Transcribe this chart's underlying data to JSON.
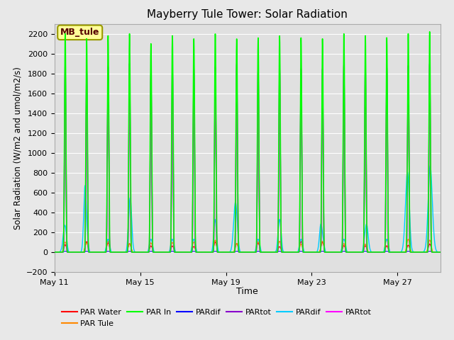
{
  "title": "Mayberry Tule Tower: Solar Radiation",
  "ylabel": "Solar Radiation (W/m2 and umol/m2/s)",
  "xlabel": "Time",
  "ylim": [
    -200,
    2300
  ],
  "yticks": [
    -200,
    0,
    200,
    400,
    600,
    800,
    1000,
    1200,
    1400,
    1600,
    1800,
    2000,
    2200
  ],
  "fig_bg": "#e8e8e8",
  "plot_bg": "#e0e0e0",
  "grid_color": "#ffffff",
  "annotation_text": "MB_tule",
  "annotation_bg": "#ffff99",
  "annotation_border": "#999900",
  "n_days": 18,
  "series_colors": {
    "par_water": "#ff0000",
    "par_tule": "#ff8800",
    "par_in": "#00ff00",
    "pardif_blue": "#0000ff",
    "partot_purple": "#8800cc",
    "pardif_cyan": "#00ccff",
    "partot_magenta": "#ff00ff"
  },
  "legend_entries": [
    {
      "label": "PAR Water",
      "color": "#ff0000"
    },
    {
      "label": "PAR Tule",
      "color": "#ff8800"
    },
    {
      "label": "PAR In",
      "color": "#00ff00"
    },
    {
      "label": "PARdif",
      "color": "#0000ff"
    },
    {
      "label": "PARtot",
      "color": "#8800cc"
    },
    {
      "label": "PARdif",
      "color": "#00ccff"
    },
    {
      "label": "PARtot",
      "color": "#ff00ff"
    }
  ],
  "xtick_labels": [
    "May 11",
    "May 15",
    "May 19",
    "May 23",
    "May 27"
  ],
  "xtick_positions": [
    0,
    4,
    8,
    12,
    16
  ]
}
